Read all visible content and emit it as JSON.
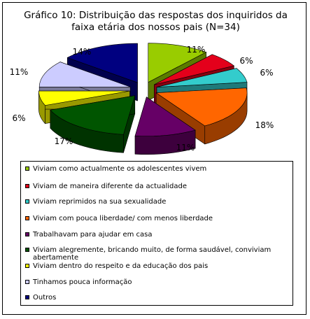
{
  "chart_data": {
    "type": "pie",
    "style": "3d-exploded",
    "title_lines": [
      "Gráfico 10: Distribuição das respostas dos inquiridos da",
      "faixa etária dos nossos pais (N=34)"
    ],
    "legend_position": "bottom",
    "slices": [
      {
        "label": "Viviam como actualmente os adolescentes vivem",
        "value": 11,
        "percent_label": "11%",
        "color": "#99CC00",
        "side": "#5B7A00"
      },
      {
        "label": "Viviam de maneira diferente da actualidade",
        "value": 6,
        "percent_label": "6%",
        "color": "#E4001B",
        "side": "#880010"
      },
      {
        "label": "Viviam reprimidos na sua sexualidade",
        "value": 6,
        "percent_label": "6%",
        "color": "#33CCCC",
        "side": "#1F7A7A"
      },
      {
        "label": "Viviam com pouca liberdade/ com menos liberdade",
        "value": 18,
        "percent_label": "18%",
        "color": "#FF6600",
        "side": "#993D00"
      },
      {
        "label": "Trabalhavam para ajudar em casa",
        "value": 11,
        "percent_label": "11%",
        "color": "#660066",
        "side": "#3D003D"
      },
      {
        "label": "Viviam alegremente, bricando muito, de forma saudável, conviviam abertamente",
        "value": 17,
        "percent_label": "17%",
        "color": "#005500",
        "side": "#003300"
      },
      {
        "label": "Viviam dentro do respeito e da educação dos pais",
        "value": 6,
        "percent_label": "6%",
        "color": "#FFFF00",
        "side": "#999900"
      },
      {
        "label": "Tinhamos pouca informação",
        "value": 11,
        "percent_label": "11%",
        "color": "#CCCCFF",
        "side": "#7A7A99"
      },
      {
        "label": "Outros",
        "value": 14,
        "percent_label": "14%",
        "color": "#000080",
        "side": "#00004D"
      }
    ]
  }
}
